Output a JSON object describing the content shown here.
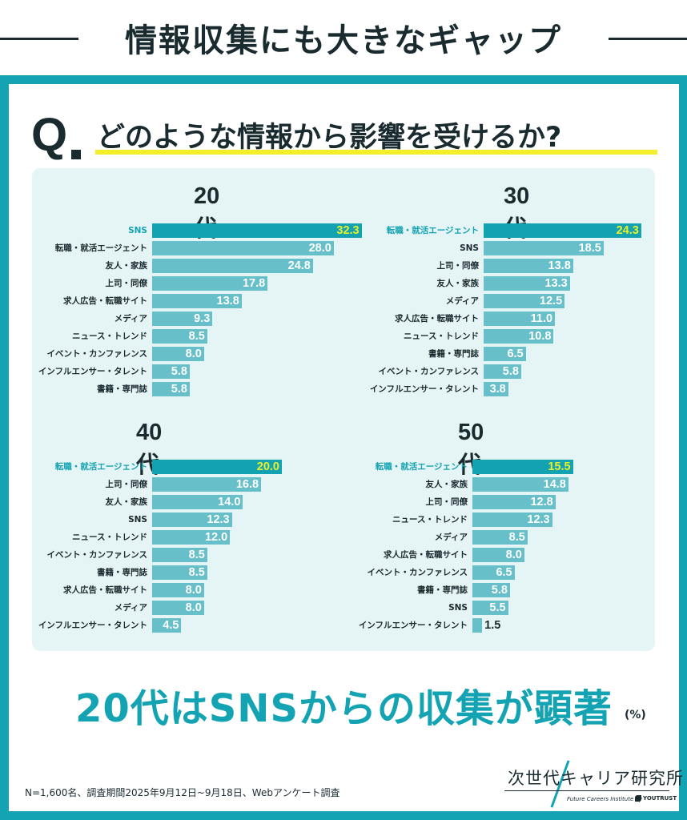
{
  "header": {
    "title": "情報収集にも大きなギャップ"
  },
  "question": {
    "mark": "Q",
    "text": "どのような情報から影響を受けるか?"
  },
  "headline": "20代はSNSからの収集が顕著",
  "unit": "(%)",
  "footnote": "N=1,600名、調査期間2025年9月12日~9月18日、Webアンケート調査",
  "logo": {
    "name": "次世代キャリア研究所",
    "tagline": "Future Careers Institute by",
    "brand": "YOUTRUST"
  },
  "colors": {
    "frame": "#14a3b3",
    "bar": "#67bfc9",
    "bar_highlight": "#13a2b1",
    "value_highlight": "#e9f02a",
    "panel": "#e5f4f4",
    "underline": "#f4ee2a"
  },
  "chart_data": [
    {
      "type": "bar",
      "orientation": "horizontal",
      "title": "20代",
      "unit": "%",
      "categories": [
        "SNS",
        "転職・就活エージェント",
        "友人・家族",
        "上司・同僚",
        "求人広告・転職サイト",
        "メディア",
        "ニュース・トレンド",
        "イベント・カンファレンス",
        "インフルエンサー・タレント",
        "書籍・専門誌"
      ],
      "values": [
        32.3,
        28.0,
        24.8,
        17.8,
        13.8,
        9.3,
        8.5,
        8.0,
        5.8,
        5.8
      ],
      "labels": [
        "32.3",
        "28.0",
        "24.8",
        "17.8",
        "13.8",
        "9.3",
        "8.5",
        "8.0",
        "5.8",
        "5.8"
      ],
      "highlight_index": 0
    },
    {
      "type": "bar",
      "orientation": "horizontal",
      "title": "30代",
      "unit": "%",
      "categories": [
        "転職・就活エージェント",
        "SNS",
        "上司・同僚",
        "友人・家族",
        "メディア",
        "求人広告・転職サイト",
        "ニュース・トレンド",
        "書籍・専門誌",
        "イベント・カンファレンス",
        "インフルエンサー・タレント"
      ],
      "values": [
        24.3,
        18.5,
        13.8,
        13.3,
        12.5,
        11.0,
        10.8,
        6.5,
        5.8,
        3.8
      ],
      "labels": [
        "24.3",
        "18.5",
        "13.8",
        "13.3",
        "12.5",
        "11.0",
        "10.8",
        "6.5",
        "5.8",
        "3.8"
      ],
      "highlight_index": 0
    },
    {
      "type": "bar",
      "orientation": "horizontal",
      "title": "40代",
      "unit": "%",
      "categories": [
        "転職・就活エージェント",
        "上司・同僚",
        "友人・家族",
        "SNS",
        "ニュース・トレンド",
        "イベント・カンファレンス",
        "書籍・専門誌",
        "求人広告・転職サイト",
        "メディア",
        "インフルエンサー・タレント"
      ],
      "values": [
        20.0,
        16.8,
        14.0,
        12.3,
        12.0,
        8.5,
        8.5,
        8.0,
        8.0,
        4.5
      ],
      "labels": [
        "20.0",
        "16.8",
        "14.0",
        "12.3",
        "12.0",
        "8.5",
        "8.5",
        "8.0",
        "8.0",
        "4.5"
      ],
      "highlight_index": 0
    },
    {
      "type": "bar",
      "orientation": "horizontal",
      "title": "50代",
      "unit": "%",
      "categories": [
        "転職・就活エージェント",
        "友人・家族",
        "上司・同僚",
        "ニュース・トレンド",
        "メディア",
        "求人広告・転職サイト",
        "イベント・カンファレンス",
        "書籍・専門誌",
        "SNS",
        "インフルエンサー・タレント"
      ],
      "values": [
        15.5,
        14.8,
        12.8,
        12.3,
        8.5,
        8.0,
        6.5,
        5.8,
        5.5,
        1.5
      ],
      "labels": [
        "15.5",
        "14.8",
        "12.8",
        "12.3",
        "8.5",
        "8.0",
        "6.5",
        "5.8",
        "5.5",
        "1.5"
      ],
      "highlight_index": 0
    }
  ]
}
